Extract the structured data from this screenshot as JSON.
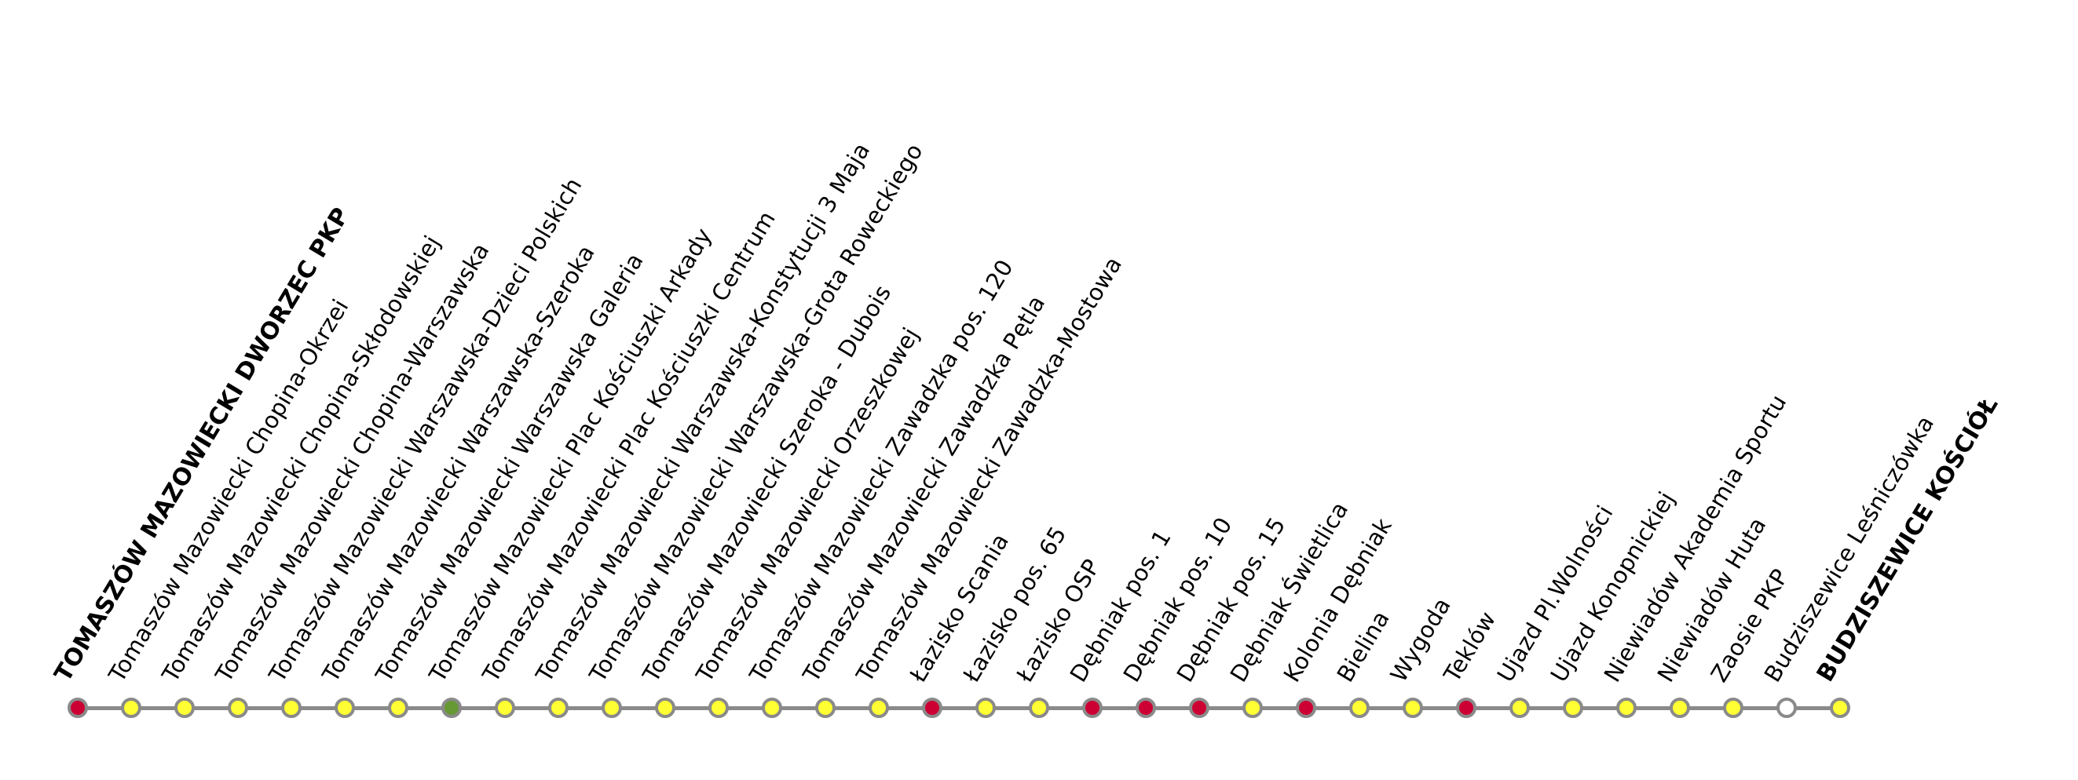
{
  "diagram": {
    "type": "bus-route-line",
    "colors": {
      "line": "#8a8a8a",
      "stop_border": "#8a8a8a",
      "red": "#cc0033",
      "yellow": "#ffff33",
      "green": "#669933",
      "white": "#ffffff"
    },
    "stops": [
      {
        "name": "TOMASZÓW MAZOWIECKI DWORZEC PKP",
        "color": "red",
        "terminal": true
      },
      {
        "name": "Tomaszów Mazowiecki Chopina-Okrzei",
        "color": "yellow"
      },
      {
        "name": "Tomaszów Mazowiecki Chopina-Skłodowskiej",
        "color": "yellow"
      },
      {
        "name": "Tomaszów Mazowiecki Chopina-Warszawska",
        "color": "yellow"
      },
      {
        "name": "Tomaszów Mazowiecki Warszawska-Dzieci Polskich",
        "color": "yellow"
      },
      {
        "name": "Tomaszów Mazowiecki Warszawska-Szeroka",
        "color": "yellow"
      },
      {
        "name": "Tomaszów Mazowiecki Warszawska Galeria",
        "color": "yellow"
      },
      {
        "name": "Tomaszów Mazowiecki Plac Kościuszki Arkady",
        "color": "green"
      },
      {
        "name": "Tomaszów Mazowiecki Plac Kościuszki Centrum",
        "color": "yellow"
      },
      {
        "name": "Tomaszów Mazowiecki Warszawska-Konstytucji 3 Maja",
        "color": "yellow"
      },
      {
        "name": "Tomaszów Mazowiecki Warszawska-Grota Roweckiego",
        "color": "yellow"
      },
      {
        "name": "Tomaszów Mazowiecki Szeroka - Dubois",
        "color": "yellow"
      },
      {
        "name": "Tomaszów Mazowiecki Orzeszkowej",
        "color": "yellow"
      },
      {
        "name": "Tomaszów Mazowiecki Zawadzka pos. 120",
        "color": "yellow"
      },
      {
        "name": "Tomaszów Mazowiecki Zawadzka Pętla",
        "color": "yellow"
      },
      {
        "name": "Tomaszów Mazowiecki Zawadzka-Mostowa",
        "color": "yellow"
      },
      {
        "name": "Łazisko Scania",
        "color": "red"
      },
      {
        "name": "Łazisko pos. 65",
        "color": "yellow"
      },
      {
        "name": "Łazisko OSP",
        "color": "yellow"
      },
      {
        "name": "Dębniak pos. 1",
        "color": "red"
      },
      {
        "name": "Dębniak pos. 10",
        "color": "red"
      },
      {
        "name": "Dębniak pos. 15",
        "color": "red"
      },
      {
        "name": "Dębniak Świetlica",
        "color": "yellow"
      },
      {
        "name": "Kolonia Dębniak",
        "color": "red"
      },
      {
        "name": "Bielina",
        "color": "yellow"
      },
      {
        "name": "Wygoda",
        "color": "yellow"
      },
      {
        "name": "Teklów",
        "color": "red"
      },
      {
        "name": "Ujazd Pl.Wolności",
        "color": "yellow"
      },
      {
        "name": "Ujazd Konopnickiej",
        "color": "yellow"
      },
      {
        "name": "Niewiadów Akademia Sportu",
        "color": "yellow"
      },
      {
        "name": "Niewiadów Huta",
        "color": "yellow"
      },
      {
        "name": "Zaosie PKP",
        "color": "yellow"
      },
      {
        "name": "Budziszewice Leśniczówka",
        "color": "white"
      },
      {
        "name": "BUDZISZEWICE KOŚCIÓŁ",
        "color": "yellow",
        "terminal": true
      }
    ]
  }
}
